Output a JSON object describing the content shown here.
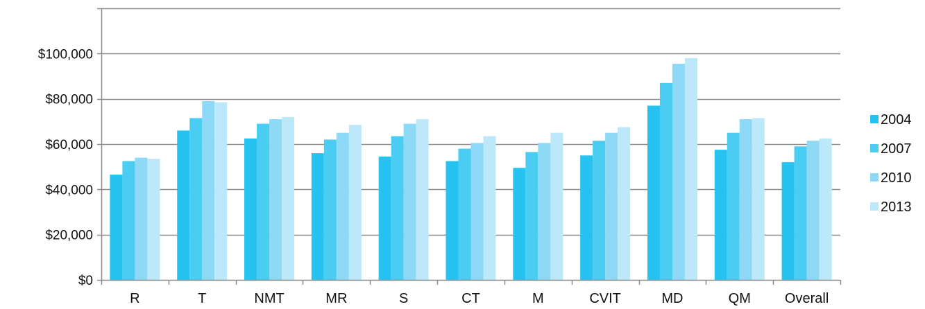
{
  "chart_data": {
    "type": "bar",
    "title": "",
    "xlabel": "",
    "ylabel": "",
    "ylim": [
      0,
      120000
    ],
    "yticks": [
      0,
      20000,
      40000,
      60000,
      80000,
      100000
    ],
    "ytick_labels": [
      "$0",
      "$20,000",
      "$40,000",
      "$60,000",
      "$80,000",
      "$100,000"
    ],
    "grid": true,
    "legend_position": "right",
    "categories": [
      "R",
      "T",
      "NMT",
      "MR",
      "S",
      "CT",
      "M",
      "CVIT",
      "MD",
      "QM",
      "Overall"
    ],
    "series": [
      {
        "name": "2004",
        "color": "#26c3f0",
        "values": [
          46500,
          66000,
          62500,
          56000,
          54500,
          52500,
          49500,
          55000,
          77000,
          57500,
          52000
        ]
      },
      {
        "name": "2007",
        "color": "#4bccf2",
        "values": [
          52500,
          71500,
          69000,
          62000,
          63500,
          58000,
          56500,
          61500,
          87000,
          65000,
          59000
        ]
      },
      {
        "name": "2010",
        "color": "#8dd9f6",
        "values": [
          54000,
          79000,
          71000,
          65000,
          69000,
          60500,
          60500,
          65000,
          95500,
          71000,
          61500
        ]
      },
      {
        "name": "2013",
        "color": "#bde8fa",
        "values": [
          53500,
          78500,
          72000,
          68500,
          71000,
          63500,
          65000,
          67500,
          98000,
          71500,
          62500
        ]
      }
    ]
  }
}
